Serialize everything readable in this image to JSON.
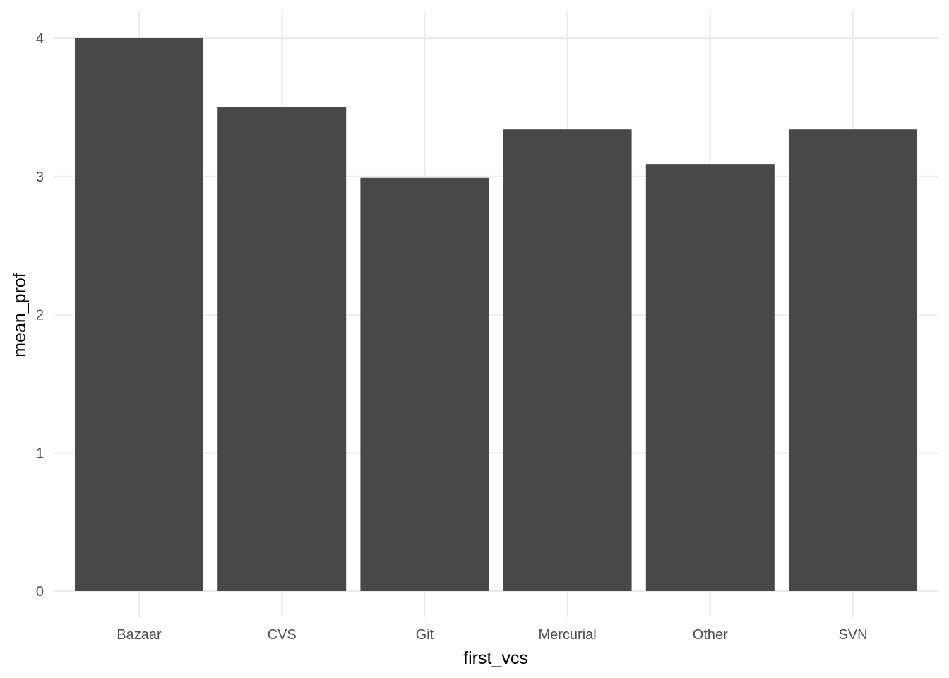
{
  "chart_data": {
    "type": "bar",
    "categories": [
      "Bazaar",
      "CVS",
      "Git",
      "Mercurial",
      "Other",
      "SVN"
    ],
    "values": [
      4.0,
      3.5,
      2.99,
      3.34,
      3.09,
      3.34
    ],
    "title": "",
    "xlabel": "first_vcs",
    "ylabel": "mean_prof",
    "ylim": [
      0,
      4.2
    ],
    "yticks": [
      "0",
      "1",
      "2",
      "3",
      "4"
    ],
    "grid": true,
    "legend": "none",
    "bar_color": "#484848",
    "grid_color": "#ebebeb"
  }
}
